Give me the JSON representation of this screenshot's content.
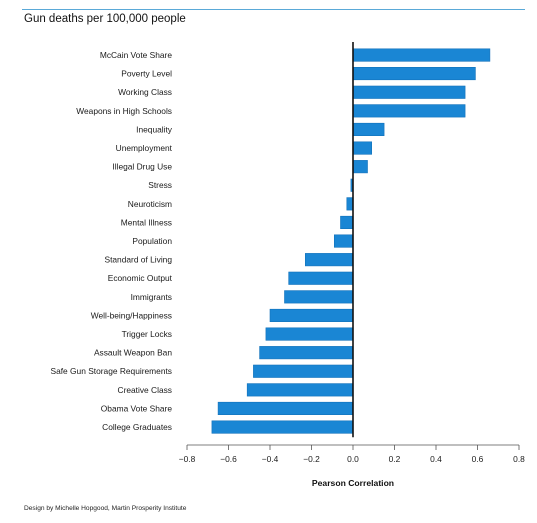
{
  "title": "Gun deaths per 100,000 people",
  "credit": "Design by Michelle Hopgood, Martin Prosperity Institute",
  "colors": {
    "bar": "#1a86d4",
    "bar_stroke": "#1372bb",
    "zero_line": "#111111",
    "axis": "#555555",
    "top_rule": "#5aa9d8"
  },
  "chart_data": {
    "type": "bar",
    "orientation": "horizontal",
    "title": "Gun deaths per 100,000 people",
    "xlabel": "Pearson Correlation",
    "ylabel": "",
    "xlim": [
      -0.8,
      0.8
    ],
    "xticks": [
      "−0.8",
      "−0.6",
      "−0.4",
      "−0.2",
      "0.0",
      "0.2",
      "0.4",
      "0.6",
      "0.8"
    ],
    "grid": false,
    "categories": [
      "McCain Vote Share",
      "Poverty Level",
      "Working Class",
      "Weapons in High Schools",
      "Inequality",
      "Unemployment",
      "Illegal Drug Use",
      "Stress",
      "Neuroticism",
      "Mental Illness",
      "Population",
      "Standard of Living",
      "Economic Output",
      "Immigrants",
      "Well-being/Happiness",
      "Trigger Locks",
      "Assault Weapon Ban",
      "Safe Gun Storage Requirements",
      "Creative Class",
      "Obama Vote Share",
      "College Graduates"
    ],
    "values": [
      0.66,
      0.59,
      0.54,
      0.54,
      0.15,
      0.09,
      0.07,
      -0.01,
      -0.03,
      -0.06,
      -0.09,
      -0.23,
      -0.31,
      -0.33,
      -0.4,
      -0.42,
      -0.45,
      -0.48,
      -0.51,
      -0.65,
      -0.68
    ]
  }
}
